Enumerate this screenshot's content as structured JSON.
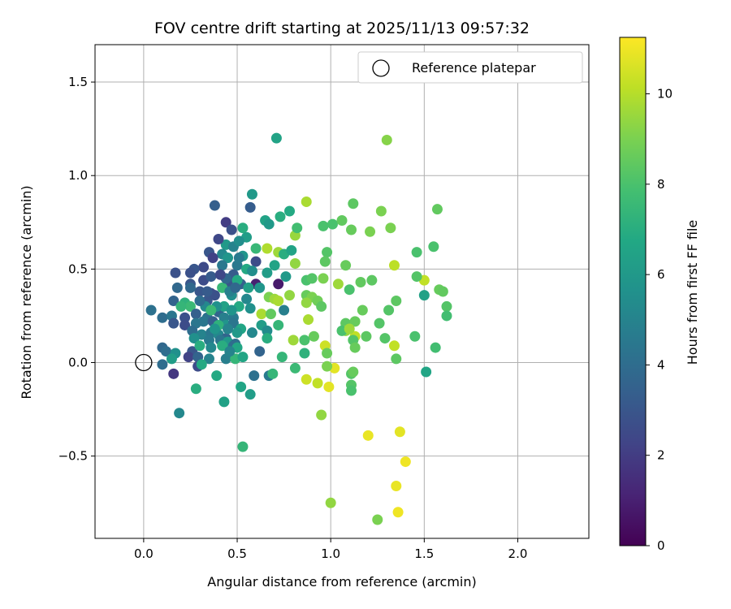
{
  "chart_data": {
    "type": "scatter",
    "title": "FOV centre drift starting at 2025/11/13 09:57:32",
    "xlabel": "Angular distance from reference (arcmin)",
    "ylabel": "Rotation from reference (arcmin)",
    "xlim": [
      -0.26,
      2.38
    ],
    "ylim": [
      -0.94,
      1.7
    ],
    "xticks": [
      0.0,
      0.5,
      1.0,
      1.5,
      2.0
    ],
    "xtick_labels": [
      "0.0",
      "0.5",
      "1.0",
      "1.5",
      "2.0"
    ],
    "yticks": [
      -0.5,
      0.0,
      0.5,
      1.0,
      1.5
    ],
    "ytick_labels": [
      "−0.5",
      "0.0",
      "0.5",
      "1.0",
      "1.5"
    ],
    "grid": true,
    "legend": {
      "position": "top-right",
      "label": "Reference platepar"
    },
    "reference_point": {
      "x": 0.0,
      "y": 0.0
    },
    "colorbar": {
      "label": "Hours from first FF file",
      "min": 0,
      "max": 11.25,
      "ticks": [
        0,
        2,
        4,
        6,
        8,
        10
      ],
      "tick_labels": [
        "0",
        "2",
        "4",
        "6",
        "8",
        "10"
      ],
      "colormap": "viridis"
    },
    "points": [
      [
        0.71,
        1.2,
        6.5
      ],
      [
        1.3,
        1.19,
        9.2
      ],
      [
        0.58,
        0.9,
        6.0
      ],
      [
        0.38,
        0.84,
        3.4
      ],
      [
        0.57,
        0.83,
        3.3
      ],
      [
        0.87,
        0.86,
        9.8
      ],
      [
        1.12,
        0.85,
        8.4
      ],
      [
        1.57,
        0.82,
        8.5
      ],
      [
        1.27,
        0.81,
        9.0
      ],
      [
        0.78,
        0.81,
        6.8
      ],
      [
        0.65,
        0.76,
        6.5
      ],
      [
        0.44,
        0.75,
        2.0
      ],
      [
        0.73,
        0.78,
        7.0
      ],
      [
        1.01,
        0.74,
        8.0
      ],
      [
        1.06,
        0.76,
        8.5
      ],
      [
        0.96,
        0.73,
        8.0
      ],
      [
        0.53,
        0.72,
        7.0
      ],
      [
        0.47,
        0.71,
        2.8
      ],
      [
        1.32,
        0.72,
        9.0
      ],
      [
        0.81,
        0.68,
        9.5
      ],
      [
        0.82,
        0.72,
        7.8
      ],
      [
        1.11,
        0.71,
        8.6
      ],
      [
        0.67,
        0.74,
        6.0
      ],
      [
        0.55,
        0.67,
        6.2
      ],
      [
        0.44,
        0.63,
        6.0
      ],
      [
        0.4,
        0.66,
        2.4
      ],
      [
        0.48,
        0.62,
        5.0
      ],
      [
        0.6,
        0.61,
        7.5
      ],
      [
        0.72,
        0.59,
        9.6
      ],
      [
        1.21,
        0.7,
        9.0
      ],
      [
        1.55,
        0.62,
        8.0
      ],
      [
        0.51,
        0.65,
        5.5
      ],
      [
        0.66,
        0.61,
        9.9
      ],
      [
        0.75,
        0.58,
        7.0
      ],
      [
        0.79,
        0.6,
        6.5
      ],
      [
        0.98,
        0.59,
        8.2
      ],
      [
        1.46,
        0.59,
        8.0
      ],
      [
        0.35,
        0.59,
        3.0
      ],
      [
        0.42,
        0.58,
        5.2
      ],
      [
        0.53,
        0.57,
        5.8
      ],
      [
        0.6,
        0.54,
        2.6
      ],
      [
        0.37,
        0.56,
        2.2
      ],
      [
        0.32,
        0.51,
        2.5
      ],
      [
        0.27,
        0.5,
        3.0
      ],
      [
        0.45,
        0.56,
        5.8
      ],
      [
        0.5,
        0.52,
        4.5
      ],
      [
        0.55,
        0.5,
        6.8
      ],
      [
        0.7,
        0.52,
        6.5
      ],
      [
        0.81,
        0.53,
        9.4
      ],
      [
        0.97,
        0.54,
        8.4
      ],
      [
        1.08,
        0.52,
        8.6
      ],
      [
        1.34,
        0.52,
        10.1
      ],
      [
        1.5,
        0.44,
        10.2
      ],
      [
        0.17,
        0.48,
        2.8
      ],
      [
        0.25,
        0.48,
        2.8
      ],
      [
        0.42,
        0.52,
        4.5
      ],
      [
        0.58,
        0.49,
        5.5
      ],
      [
        0.66,
        0.48,
        6.2
      ],
      [
        0.76,
        0.46,
        6.0
      ],
      [
        0.87,
        0.44,
        8.0
      ],
      [
        0.9,
        0.45,
        8.2
      ],
      [
        0.96,
        0.45,
        9.0
      ],
      [
        1.04,
        0.42,
        9.6
      ],
      [
        1.16,
        0.43,
        8.5
      ],
      [
        1.22,
        0.44,
        8.4
      ],
      [
        1.46,
        0.46,
        8.2
      ],
      [
        1.58,
        0.39,
        8.6
      ],
      [
        1.6,
        0.38,
        8.5
      ],
      [
        0.18,
        0.4,
        3.8
      ],
      [
        0.25,
        0.42,
        3.0
      ],
      [
        0.32,
        0.44,
        2.6
      ],
      [
        0.36,
        0.46,
        3.2
      ],
      [
        0.45,
        0.43,
        3.0
      ],
      [
        0.52,
        0.42,
        3.5
      ],
      [
        0.6,
        0.42,
        1.0
      ],
      [
        0.72,
        0.42,
        0.8
      ],
      [
        0.62,
        0.4,
        5.8
      ],
      [
        0.56,
        0.4,
        6.3
      ],
      [
        0.42,
        0.4,
        7.5
      ],
      [
        0.36,
        0.37,
        2.4
      ],
      [
        0.3,
        0.38,
        3.0
      ],
      [
        0.25,
        0.4,
        3.8
      ],
      [
        0.16,
        0.33,
        3.6
      ],
      [
        0.22,
        0.32,
        7.2
      ],
      [
        0.25,
        0.3,
        7.6
      ],
      [
        0.34,
        0.33,
        3.0
      ],
      [
        0.38,
        0.36,
        2.8
      ],
      [
        0.47,
        0.36,
        5.5
      ],
      [
        0.55,
        0.34,
        5.2
      ],
      [
        0.67,
        0.35,
        9.0
      ],
      [
        0.7,
        0.34,
        9.6
      ],
      [
        0.72,
        0.33,
        9.8
      ],
      [
        0.78,
        0.36,
        9.4
      ],
      [
        0.87,
        0.36,
        8.6
      ],
      [
        0.9,
        0.35,
        9.0
      ],
      [
        0.93,
        0.33,
        8.8
      ],
      [
        1.1,
        0.39,
        8.0
      ],
      [
        1.35,
        0.33,
        8.4
      ],
      [
        1.5,
        0.36,
        6.4
      ],
      [
        1.62,
        0.3,
        8.2
      ],
      [
        0.04,
        0.28,
        4.2
      ],
      [
        0.1,
        0.24,
        4.0
      ],
      [
        0.15,
        0.25,
        4.4
      ],
      [
        0.22,
        0.24,
        2.8
      ],
      [
        0.28,
        0.26,
        3.4
      ],
      [
        0.34,
        0.24,
        4.2
      ],
      [
        0.4,
        0.27,
        3.6
      ],
      [
        0.43,
        0.24,
        4.8
      ],
      [
        0.48,
        0.24,
        4.6
      ],
      [
        0.57,
        0.29,
        5.6
      ],
      [
        0.63,
        0.26,
        9.8
      ],
      [
        0.68,
        0.26,
        8.5
      ],
      [
        0.75,
        0.28,
        4.8
      ],
      [
        0.87,
        0.32,
        9.4
      ],
      [
        0.95,
        0.3,
        8.4
      ],
      [
        1.17,
        0.28,
        8.6
      ],
      [
        1.31,
        0.28,
        8.2
      ],
      [
        1.62,
        0.25,
        7.8
      ],
      [
        0.16,
        0.21,
        3.0
      ],
      [
        0.22,
        0.2,
        2.6
      ],
      [
        0.28,
        0.21,
        4.4
      ],
      [
        0.32,
        0.22,
        4.4
      ],
      [
        0.37,
        0.22,
        3.4
      ],
      [
        0.44,
        0.2,
        5.8
      ],
      [
        0.48,
        0.21,
        4.4
      ],
      [
        0.52,
        0.18,
        6.6
      ],
      [
        0.63,
        0.2,
        6.2
      ],
      [
        0.72,
        0.2,
        7.4
      ],
      [
        0.88,
        0.23,
        9.8
      ],
      [
        1.08,
        0.21,
        8.4
      ],
      [
        1.13,
        0.22,
        8.6
      ],
      [
        1.26,
        0.21,
        8.2
      ],
      [
        1.45,
        0.14,
        8.0
      ],
      [
        0.26,
        0.17,
        4.0
      ],
      [
        0.31,
        0.15,
        5.0
      ],
      [
        0.36,
        0.16,
        4.4
      ],
      [
        0.4,
        0.15,
        5.2
      ],
      [
        0.44,
        0.13,
        3.6
      ],
      [
        0.5,
        0.16,
        6.0
      ],
      [
        0.58,
        0.16,
        5.2
      ],
      [
        0.66,
        0.17,
        5.4
      ],
      [
        0.8,
        0.12,
        9.6
      ],
      [
        0.91,
        0.14,
        8.6
      ],
      [
        1.08,
        0.17,
        9.4
      ],
      [
        1.13,
        0.14,
        10.2
      ],
      [
        1.19,
        0.14,
        8.4
      ],
      [
        1.29,
        0.13,
        8.2
      ],
      [
        0.27,
        0.13,
        5.6
      ],
      [
        0.35,
        0.12,
        4.6
      ],
      [
        0.41,
        0.12,
        4.4
      ],
      [
        0.45,
        0.11,
        6.0
      ],
      [
        0.49,
        0.1,
        4.2
      ],
      [
        0.66,
        0.13,
        7.0
      ],
      [
        0.86,
        0.12,
        8.0
      ],
      [
        1.06,
        0.17,
        8.0
      ],
      [
        1.1,
        0.18,
        9.6
      ],
      [
        1.12,
        0.12,
        8.2
      ],
      [
        1.34,
        0.09,
        10.2
      ],
      [
        1.56,
        0.08,
        7.8
      ],
      [
        0.1,
        0.08,
        3.8
      ],
      [
        0.26,
        0.06,
        3.0
      ],
      [
        0.3,
        0.09,
        7.0
      ],
      [
        0.36,
        0.08,
        5.2
      ],
      [
        0.48,
        0.09,
        4.0
      ],
      [
        0.5,
        0.08,
        6.6
      ],
      [
        0.62,
        0.06,
        3.6
      ],
      [
        0.74,
        0.03,
        7.4
      ],
      [
        0.86,
        0.05,
        7.2
      ],
      [
        0.97,
        0.09,
        10.4
      ],
      [
        1.13,
        0.08,
        8.6
      ],
      [
        0.12,
        0.06,
        4.0
      ],
      [
        0.17,
        0.05,
        5.6
      ],
      [
        0.24,
        0.03,
        2.2
      ],
      [
        0.29,
        0.03,
        3.6
      ],
      [
        0.35,
        0.02,
        5.0
      ],
      [
        0.44,
        0.02,
        4.8
      ],
      [
        0.49,
        0.02,
        7.4
      ],
      [
        0.53,
        0.03,
        6.6
      ],
      [
        0.81,
        -0.03,
        7.6
      ],
      [
        0.98,
        0.05,
        8.6
      ],
      [
        1.02,
        -0.03,
        10.8
      ],
      [
        1.35,
        0.02,
        8.4
      ],
      [
        0.1,
        -0.01,
        4.0
      ],
      [
        0.15,
        0.02,
        6.2
      ],
      [
        0.29,
        -0.02,
        2.6
      ],
      [
        0.31,
        -0.01,
        6.8
      ],
      [
        0.39,
        -0.07,
        6.8
      ],
      [
        0.59,
        -0.07,
        4.2
      ],
      [
        0.67,
        -0.07,
        4.6
      ],
      [
        0.69,
        -0.06,
        7.4
      ],
      [
        0.98,
        -0.02,
        9.0
      ],
      [
        1.11,
        -0.06,
        8.2
      ],
      [
        1.12,
        -0.05,
        8.6
      ],
      [
        1.51,
        -0.05,
        6.6
      ],
      [
        0.16,
        -0.06,
        1.8
      ],
      [
        0.28,
        -0.14,
        7.0
      ],
      [
        0.52,
        -0.13,
        6.6
      ],
      [
        0.57,
        -0.17,
        6.2
      ],
      [
        0.87,
        -0.09,
        10.4
      ],
      [
        0.93,
        -0.11,
        10.2
      ],
      [
        0.99,
        -0.13,
        10.8
      ],
      [
        1.11,
        -0.12,
        8.2
      ],
      [
        1.11,
        -0.15,
        8.0
      ],
      [
        0.43,
        -0.21,
        6.4
      ],
      [
        0.95,
        -0.28,
        9.4
      ],
      [
        0.19,
        -0.27,
        5.2
      ],
      [
        0.53,
        -0.45,
        7.4
      ],
      [
        1.2,
        -0.39,
        10.9
      ],
      [
        1.37,
        -0.37,
        10.8
      ],
      [
        1.4,
        -0.53,
        11.0
      ],
      [
        1.35,
        -0.66,
        10.9
      ],
      [
        1.0,
        -0.75,
        9.4
      ],
      [
        1.36,
        -0.8,
        11.0
      ],
      [
        1.25,
        -0.84,
        9.0
      ],
      [
        0.48,
        0.47,
        3.2
      ],
      [
        0.44,
        0.45,
        3.8
      ],
      [
        0.41,
        0.47,
        2.4
      ],
      [
        0.46,
        0.38,
        4.8
      ],
      [
        0.51,
        0.3,
        6.8
      ],
      [
        0.43,
        0.3,
        6.4
      ],
      [
        0.39,
        0.3,
        5.6
      ],
      [
        0.47,
        0.28,
        5.8
      ],
      [
        0.4,
        0.2,
        7.2
      ],
      [
        0.45,
        0.18,
        5.0
      ],
      [
        0.38,
        0.18,
        5.8
      ],
      [
        0.42,
        0.09,
        7.0
      ],
      [
        0.46,
        0.06,
        5.0
      ],
      [
        0.33,
        0.3,
        5.2
      ],
      [
        0.3,
        0.33,
        4.0
      ],
      [
        0.2,
        0.3,
        7.4
      ],
      [
        0.36,
        0.28,
        7.6
      ],
      [
        0.51,
        0.56,
        4.6
      ],
      [
        0.5,
        0.44,
        6.8
      ],
      [
        0.49,
        0.4,
        3.8
      ],
      [
        0.34,
        0.38,
        3.2
      ]
    ]
  }
}
